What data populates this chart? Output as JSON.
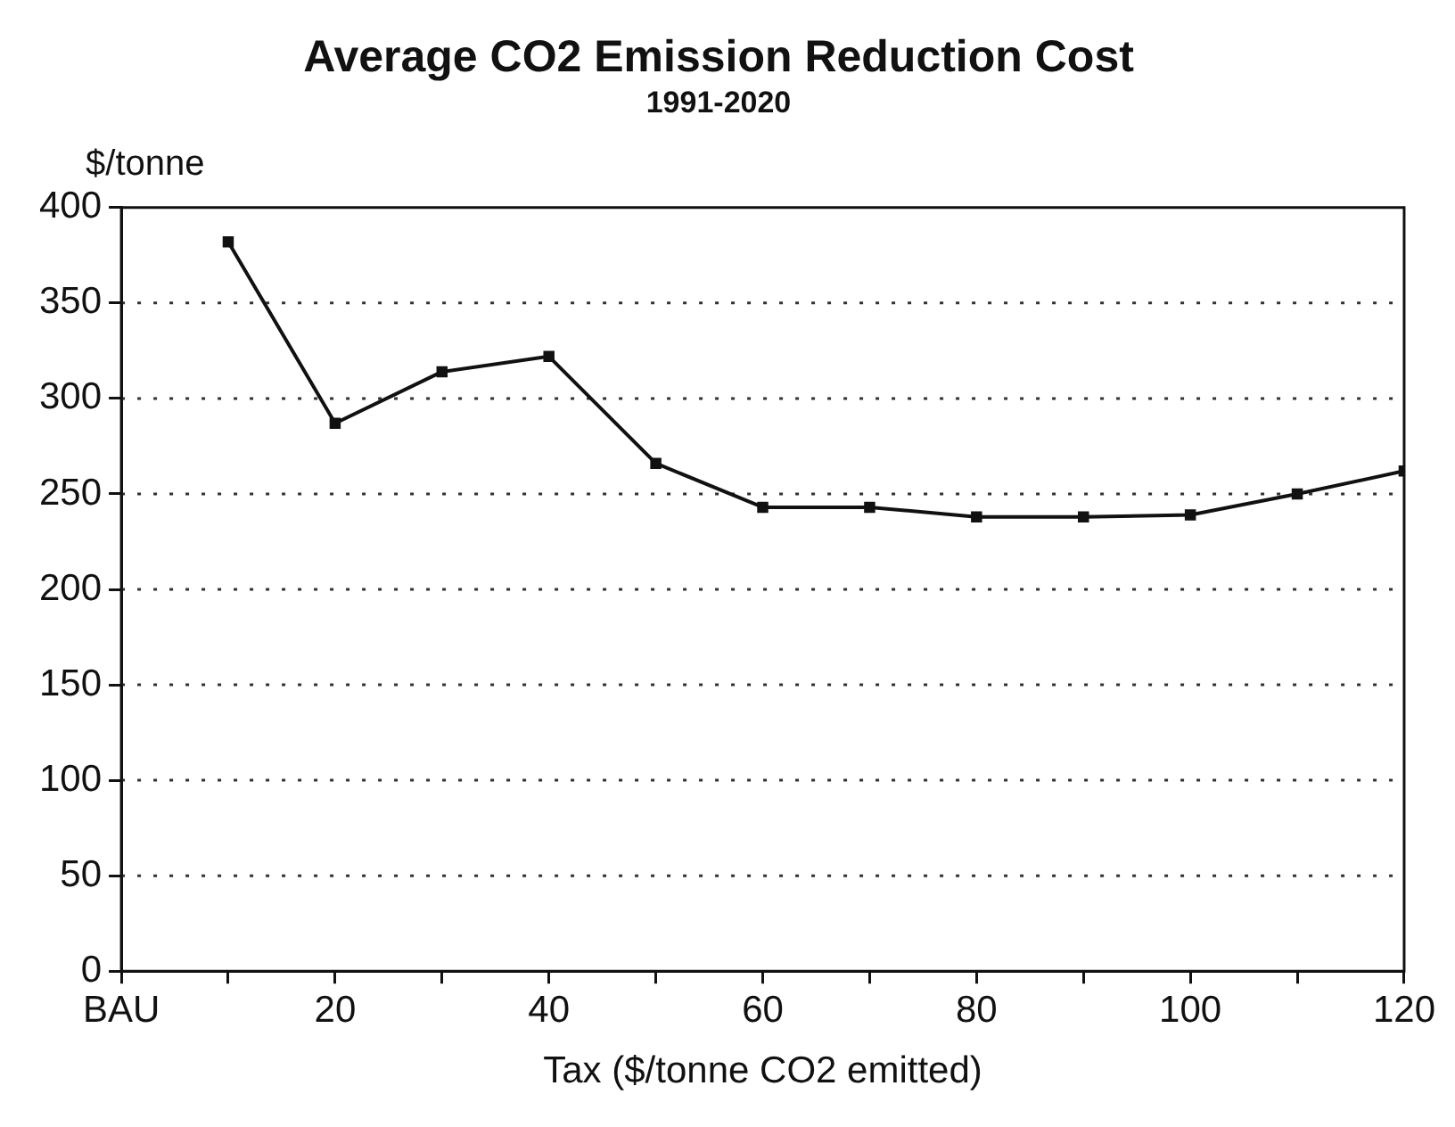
{
  "chart_data": {
    "type": "line",
    "title": "Average CO2 Emission Reduction Cost",
    "subtitle": "1991-2020",
    "xlabel": "Tax ($/tonne CO2 emitted)",
    "ylabel": "$/tonne",
    "x": [
      10,
      20,
      30,
      40,
      50,
      60,
      70,
      80,
      90,
      100,
      110,
      120
    ],
    "series": [
      {
        "color": "#111111",
        "values": [
          382,
          287,
          314,
          322,
          266,
          243,
          243,
          238,
          238,
          239,
          250,
          262
        ]
      }
    ],
    "xlim": [
      0,
      120
    ],
    "xticks": [
      {
        "value": 0,
        "label": "BAU"
      },
      {
        "value": 10,
        "label": null
      },
      20,
      {
        "value": 30,
        "label": null
      },
      40,
      {
        "value": 50,
        "label": null
      },
      60,
      {
        "value": 70,
        "label": null
      },
      80,
      {
        "value": 90,
        "label": null
      },
      100,
      {
        "value": 110,
        "label": null
      },
      120
    ],
    "ylim": [
      0,
      400
    ],
    "yticks": [
      0,
      50,
      100,
      150,
      200,
      250,
      300,
      350,
      400
    ],
    "grid": "y",
    "legend": false,
    "marker": "square",
    "line_style": "solid"
  }
}
